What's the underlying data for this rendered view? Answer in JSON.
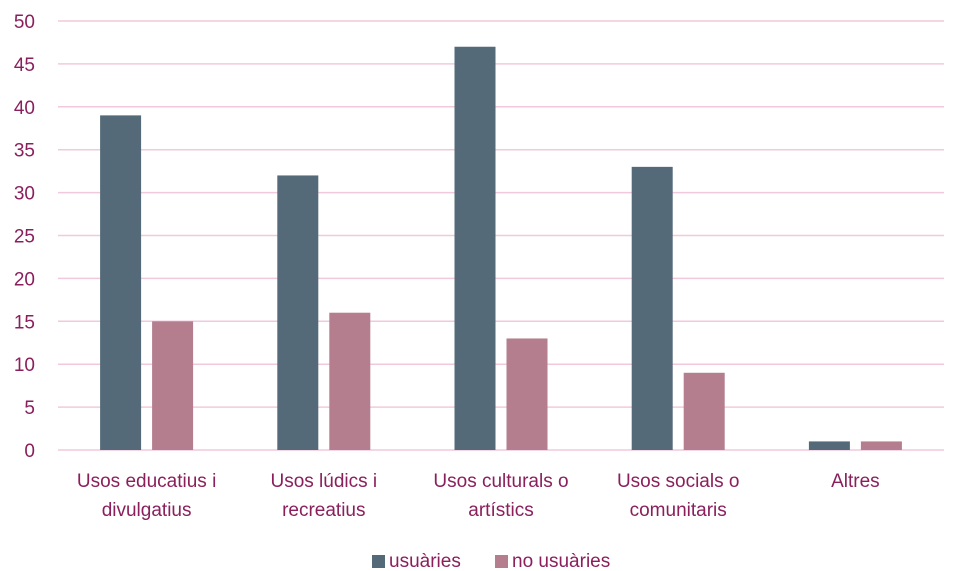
{
  "chart_data": {
    "type": "bar",
    "categories": [
      [
        "Usos educatius i",
        "divulgatius"
      ],
      [
        "Usos lúdics i",
        "recreatius"
      ],
      [
        "Usos culturals o",
        "artístics"
      ],
      [
        "Usos socials o",
        "comunitaris"
      ],
      [
        "Altres"
      ]
    ],
    "series": [
      {
        "name": "usuàries",
        "values": [
          39,
          32,
          47,
          33,
          1
        ],
        "color": "#546a78"
      },
      {
        "name": "no usuàries",
        "values": [
          15,
          16,
          13,
          9,
          1
        ],
        "color": "#b47e8f"
      }
    ],
    "ylim": [
      0,
      50
    ],
    "yticks": [
      0,
      5,
      10,
      15,
      20,
      25,
      30,
      35,
      40,
      45,
      50
    ],
    "grid": true,
    "grid_color": "#f2c9dc",
    "text_color": "#8a1f5c",
    "legend_position": "bottom",
    "title": "",
    "xlabel": "",
    "ylabel": ""
  }
}
